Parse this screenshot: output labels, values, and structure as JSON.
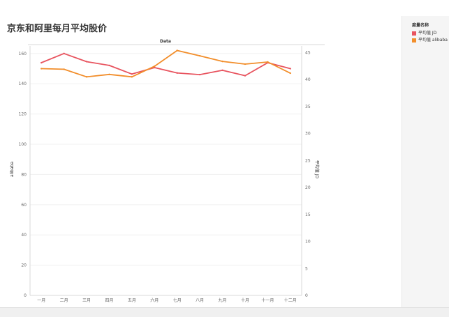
{
  "page_title": "京东和阿里每月平均股价",
  "legend": {
    "title": "度量名称",
    "items": [
      {
        "label": "平均值 JD",
        "color": "#e8545f"
      },
      {
        "label": "平均值 alibaba",
        "color": "#f28e2b"
      }
    ]
  },
  "chart_data": {
    "type": "line",
    "title": "京东和阿里每月平均股价",
    "top_label": "Data",
    "xlabel": "",
    "ylabel_left": "alibaba",
    "ylabel_right": "平均值 JD",
    "categories": [
      "一月",
      "二月",
      "三月",
      "四月",
      "五月",
      "六月",
      "七月",
      "八月",
      "九月",
      "十月",
      "十一月",
      "十二月"
    ],
    "y_left_lim": [
      0,
      165
    ],
    "y_left_ticks": [
      0,
      20,
      40,
      60,
      80,
      100,
      120,
      140,
      160
    ],
    "y_right_lim": [
      0,
      46.2
    ],
    "y_right_ticks": [
      0,
      5,
      10,
      15,
      20,
      25,
      30,
      35,
      40,
      45
    ],
    "grid": true,
    "legend_position": "right",
    "series": [
      {
        "name": "平均值 JD",
        "axis": "right",
        "color": "#e8545f",
        "values": [
          43.1,
          44.8,
          43.3,
          42.6,
          41.0,
          42.2,
          41.2,
          40.9,
          41.7,
          40.7,
          43.1,
          42.0
        ]
      },
      {
        "name": "平均值 alibaba",
        "axis": "left",
        "color": "#f28e2b",
        "values": [
          150,
          149.6,
          144.6,
          146.2,
          144.6,
          151.6,
          162,
          158.5,
          154.8,
          153,
          154.4,
          147
        ]
      }
    ]
  }
}
